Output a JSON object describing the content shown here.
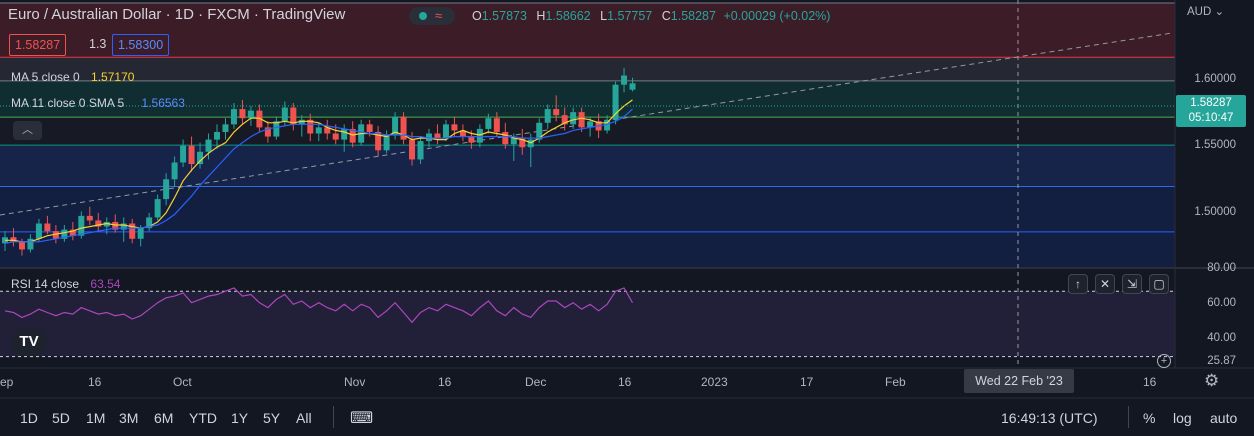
{
  "header": {
    "title": "Euro / Australian Dollar · 1D · FXCM · TradingView",
    "ohlc": {
      "o_label": "O",
      "o": "1.57873",
      "h_label": "H",
      "h": "1.58662",
      "l_label": "L",
      "l": "1.57757",
      "c_label": "C",
      "c": "1.58287",
      "change": "+0.00029 (+0.02%)"
    },
    "status_icon": "wave-icon"
  },
  "trade": {
    "sell": "1.58287",
    "spread": "1.3",
    "buy": "1.58300"
  },
  "indicators": {
    "ma5": {
      "label": "MA 5 close 0",
      "value": "1.57170",
      "color": "#f7d230"
    },
    "ma11": {
      "label": "MA 11 close 0 SMA 5",
      "value": "1.56563",
      "color": "#2962ff"
    },
    "rsi": {
      "label": "RSI 14 close",
      "value": "63.54",
      "color": "#ab47bc"
    }
  },
  "price_axis": {
    "currency": "AUD",
    "ticks": [
      "1.60000",
      "1.55000",
      "1.50000"
    ],
    "last_price": "1.58287",
    "countdown": "05:10:47"
  },
  "rsi_axis": {
    "ticks": [
      "80.00",
      "60.00",
      "40.00"
    ],
    "lower": "25.87"
  },
  "time_axis": {
    "labels": [
      "ep",
      "16",
      "Oct",
      "Nov",
      "16",
      "Dec",
      "16",
      "2023",
      "17",
      "Feb",
      "16"
    ],
    "crosshair": "Wed 22 Feb '23"
  },
  "bottom_bar": {
    "ranges": [
      "1D",
      "5D",
      "1M",
      "3M",
      "6M",
      "YTD",
      "1Y",
      "5Y",
      "All"
    ],
    "clock": "16:49:13 (UTC)",
    "percent": "%",
    "log": "log",
    "auto": "auto"
  },
  "colors": {
    "up": "#26a69a",
    "down": "#ef5350",
    "bg": "#131722"
  },
  "chart_data": {
    "type": "candlestick",
    "title": "Euro / Australian Dollar · 1D · FXCM",
    "ylim": [
      1.4625,
      1.6375
    ],
    "price_ticks": [
      1.5,
      1.55,
      1.6
    ],
    "fib_levels": [
      1.6355,
      1.6,
      1.5845,
      1.5607,
      1.5424,
      1.5153,
      1.4855
    ],
    "candles": [
      [
        1.478,
        1.486,
        1.473,
        1.482
      ],
      [
        1.482,
        1.488,
        1.476,
        1.479
      ],
      [
        1.479,
        1.481,
        1.47,
        1.474
      ],
      [
        1.474,
        1.484,
        1.472,
        1.481
      ],
      [
        1.481,
        1.494,
        1.479,
        1.491
      ],
      [
        1.491,
        1.496,
        1.484,
        1.486
      ],
      [
        1.486,
        1.49,
        1.478,
        1.481
      ],
      [
        1.481,
        1.49,
        1.479,
        1.487
      ],
      [
        1.487,
        1.492,
        1.48,
        1.483
      ],
      [
        1.483,
        1.499,
        1.481,
        1.496
      ],
      [
        1.496,
        1.502,
        1.49,
        1.493
      ],
      [
        1.493,
        1.498,
        1.486,
        1.489
      ],
      [
        1.489,
        1.495,
        1.484,
        1.492
      ],
      [
        1.492,
        1.497,
        1.485,
        1.487
      ],
      [
        1.487,
        1.495,
        1.479,
        1.491
      ],
      [
        1.491,
        1.494,
        1.478,
        1.481
      ],
      [
        1.481,
        1.49,
        1.476,
        1.488
      ],
      [
        1.488,
        1.498,
        1.486,
        1.495
      ],
      [
        1.495,
        1.51,
        1.493,
        1.507
      ],
      [
        1.507,
        1.524,
        1.503,
        1.52
      ],
      [
        1.52,
        1.535,
        1.515,
        1.531
      ],
      [
        1.531,
        1.546,
        1.528,
        1.542
      ],
      [
        1.542,
        1.548,
        1.525,
        1.53
      ],
      [
        1.53,
        1.544,
        1.527,
        1.538
      ],
      [
        1.538,
        1.55,
        1.533,
        1.546
      ],
      [
        1.546,
        1.556,
        1.54,
        1.551
      ],
      [
        1.551,
        1.56,
        1.546,
        1.556
      ],
      [
        1.556,
        1.57,
        1.553,
        1.566
      ],
      [
        1.566,
        1.572,
        1.556,
        1.56
      ],
      [
        1.56,
        1.568,
        1.555,
        1.565
      ],
      [
        1.565,
        1.569,
        1.551,
        1.554
      ],
      [
        1.554,
        1.558,
        1.544,
        1.548
      ],
      [
        1.548,
        1.561,
        1.546,
        1.558
      ],
      [
        1.558,
        1.571,
        1.555,
        1.567
      ],
      [
        1.567,
        1.57,
        1.552,
        1.556
      ],
      [
        1.556,
        1.562,
        1.548,
        1.559
      ],
      [
        1.559,
        1.563,
        1.545,
        1.55
      ],
      [
        1.55,
        1.557,
        1.545,
        1.554
      ],
      [
        1.554,
        1.559,
        1.546,
        1.55
      ],
      [
        1.55,
        1.556,
        1.543,
        1.546
      ],
      [
        1.546,
        1.556,
        1.538,
        1.553
      ],
      [
        1.553,
        1.558,
        1.541,
        1.544
      ],
      [
        1.544,
        1.559,
        1.542,
        1.556
      ],
      [
        1.556,
        1.559,
        1.548,
        1.551
      ],
      [
        1.551,
        1.555,
        1.535,
        1.539
      ],
      [
        1.539,
        1.552,
        1.537,
        1.549
      ],
      [
        1.549,
        1.564,
        1.546,
        1.561
      ],
      [
        1.561,
        1.564,
        1.543,
        1.546
      ],
      [
        1.546,
        1.551,
        1.529,
        1.533
      ],
      [
        1.533,
        1.548,
        1.53,
        1.545
      ],
      [
        1.545,
        1.553,
        1.541,
        1.55
      ],
      [
        1.55,
        1.556,
        1.543,
        1.547
      ],
      [
        1.547,
        1.559,
        1.545,
        1.556
      ],
      [
        1.556,
        1.561,
        1.548,
        1.552
      ],
      [
        1.552,
        1.556,
        1.545,
        1.548
      ],
      [
        1.548,
        1.552,
        1.54,
        1.544
      ],
      [
        1.544,
        1.556,
        1.541,
        1.553
      ],
      [
        1.553,
        1.563,
        1.55,
        1.56
      ],
      [
        1.56,
        1.564,
        1.548,
        1.551
      ],
      [
        1.551,
        1.557,
        1.54,
        1.543
      ],
      [
        1.543,
        1.55,
        1.532,
        1.547
      ],
      [
        1.547,
        1.553,
        1.536,
        1.541
      ],
      [
        1.541,
        1.55,
        1.528,
        1.546
      ],
      [
        1.546,
        1.56,
        1.544,
        1.557
      ],
      [
        1.557,
        1.569,
        1.553,
        1.566
      ],
      [
        1.566,
        1.575,
        1.558,
        1.562
      ],
      [
        1.562,
        1.567,
        1.552,
        1.556
      ],
      [
        1.556,
        1.567,
        1.553,
        1.564
      ],
      [
        1.564,
        1.567,
        1.551,
        1.554
      ],
      [
        1.554,
        1.561,
        1.548,
        1.558
      ],
      [
        1.558,
        1.563,
        1.547,
        1.552
      ],
      [
        1.552,
        1.562,
        1.55,
        1.559
      ],
      [
        1.559,
        1.584,
        1.556,
        1.582
      ],
      [
        1.582,
        1.593,
        1.577,
        1.588
      ],
      [
        1.5787,
        1.5866,
        1.5776,
        1.5829
      ]
    ],
    "ma5": [
      1.48,
      1.48,
      1.479,
      1.479,
      1.481,
      1.483,
      1.484,
      1.485,
      1.486,
      1.488,
      1.489,
      1.49,
      1.491,
      1.49,
      1.49,
      1.489,
      1.488,
      1.489,
      1.492,
      1.498,
      1.508,
      1.519,
      1.526,
      1.532,
      1.537,
      1.541,
      1.544,
      1.551,
      1.556,
      1.56,
      1.56,
      1.557,
      1.557,
      1.558,
      1.557,
      1.558,
      1.558,
      1.557,
      1.554,
      1.552,
      1.551,
      1.549,
      1.55,
      1.55,
      1.549,
      1.548,
      1.551,
      1.549,
      1.546,
      1.547,
      1.547,
      1.546,
      1.546,
      1.55,
      1.552,
      1.55,
      1.549,
      1.551,
      1.55,
      1.549,
      1.547,
      1.546,
      1.544,
      1.547,
      1.551,
      1.554,
      1.557,
      1.559,
      1.56,
      1.559,
      1.557,
      1.557,
      1.563,
      1.568,
      1.572
    ],
    "ma11": [
      1.478,
      1.479,
      1.479,
      1.479,
      1.479,
      1.48,
      1.481,
      1.482,
      1.483,
      1.484,
      1.485,
      1.486,
      1.487,
      1.488,
      1.488,
      1.488,
      1.488,
      1.489,
      1.49,
      1.493,
      1.497,
      1.503,
      1.509,
      1.516,
      1.522,
      1.528,
      1.534,
      1.54,
      1.544,
      1.548,
      1.551,
      1.553,
      1.554,
      1.555,
      1.556,
      1.556,
      1.556,
      1.556,
      1.555,
      1.554,
      1.553,
      1.552,
      1.551,
      1.55,
      1.55,
      1.549,
      1.549,
      1.549,
      1.548,
      1.548,
      1.547,
      1.547,
      1.547,
      1.548,
      1.548,
      1.548,
      1.548,
      1.548,
      1.548,
      1.548,
      1.548,
      1.547,
      1.547,
      1.547,
      1.548,
      1.549,
      1.55,
      1.552,
      1.553,
      1.554,
      1.555,
      1.556,
      1.558,
      1.561,
      1.566
    ],
    "rsi": [
      58,
      57,
      54,
      56,
      59,
      57,
      55,
      57,
      56,
      60,
      58,
      56,
      57,
      55,
      56,
      53,
      55,
      59,
      63,
      66,
      67,
      69,
      63,
      65,
      67,
      68,
      70,
      72,
      67,
      68,
      63,
      60,
      65,
      68,
      62,
      64,
      60,
      63,
      60,
      58,
      62,
      58,
      62,
      60,
      54,
      58,
      63,
      57,
      51,
      57,
      60,
      58,
      62,
      60,
      58,
      55,
      60,
      64,
      58,
      55,
      60,
      56,
      54,
      60,
      64,
      64,
      60,
      63,
      59,
      62,
      58,
      62,
      70,
      72,
      63
    ],
    "rsi_ylim": [
      23,
      83
    ],
    "rsi_levels": [
      70,
      30
    ]
  }
}
